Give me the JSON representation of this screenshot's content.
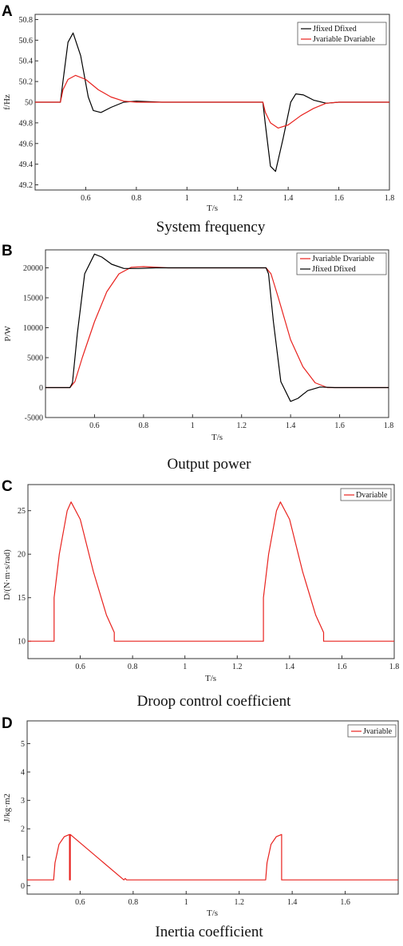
{
  "chart_data": [
    {
      "type": "line",
      "panel": "A",
      "caption": "System frequency",
      "xlabel": "T/s",
      "ylabel": "f/Hz",
      "xlim": [
        0.4,
        1.8
      ],
      "ylim": [
        49.15,
        50.85
      ],
      "xticks": [
        "0.6",
        "0.8",
        "1",
        "1.2",
        "1.4",
        "1.6",
        "1.8"
      ],
      "yticks": [
        "49.2",
        "49.4",
        "49.6",
        "49.8",
        "50",
        "50.2",
        "50.4",
        "50.6",
        "50.8"
      ],
      "legend_position": "top-right",
      "series": [
        {
          "name": "Jfixed Dfixed",
          "color": "#000000",
          "x": [
            0.4,
            0.5,
            0.51,
            0.53,
            0.55,
            0.58,
            0.61,
            0.63,
            0.66,
            0.7,
            0.75,
            0.8,
            0.9,
            1.3,
            1.31,
            1.33,
            1.35,
            1.38,
            1.41,
            1.43,
            1.46,
            1.5,
            1.55,
            1.6,
            1.8
          ],
          "y": [
            50,
            50,
            50.2,
            50.58,
            50.67,
            50.45,
            50.05,
            49.92,
            49.9,
            49.95,
            50.0,
            50.01,
            50.0,
            50,
            49.78,
            49.38,
            49.33,
            49.65,
            50.0,
            50.08,
            50.07,
            50.02,
            49.99,
            50.0,
            50.0
          ]
        },
        {
          "name": "Jvariable Dvariable",
          "color": "#e8221e",
          "x": [
            0.4,
            0.5,
            0.51,
            0.53,
            0.56,
            0.6,
            0.65,
            0.7,
            0.75,
            0.8,
            0.9,
            1.3,
            1.31,
            1.33,
            1.36,
            1.4,
            1.45,
            1.5,
            1.55,
            1.6,
            1.8
          ],
          "y": [
            50,
            50,
            50.12,
            50.22,
            50.26,
            50.22,
            50.12,
            50.05,
            50.01,
            50.0,
            50.0,
            50,
            49.9,
            49.8,
            49.75,
            49.78,
            49.87,
            49.94,
            49.99,
            50.0,
            50.0
          ]
        }
      ]
    },
    {
      "type": "line",
      "panel": "B",
      "caption": "Output power",
      "xlabel": "T/s",
      "ylabel": "P/W",
      "xlim": [
        0.4,
        1.8
      ],
      "ylim": [
        -5000,
        23000
      ],
      "xticks": [
        "0.6",
        "0.8",
        "1",
        "1.2",
        "1.4",
        "1.6",
        "1.8"
      ],
      "yticks": [
        "-5000",
        "0",
        "5000",
        "10000",
        "15000",
        "20000"
      ],
      "legend_position": "top-right",
      "series": [
        {
          "name": "Jvariable Dvariable",
          "color": "#e8221e",
          "x": [
            0.4,
            0.5,
            0.52,
            0.55,
            0.6,
            0.65,
            0.7,
            0.75,
            0.8,
            0.9,
            1.3,
            1.32,
            1.35,
            1.4,
            1.45,
            1.5,
            1.55,
            1.6,
            1.8
          ],
          "y": [
            0,
            0,
            1000,
            5000,
            11000,
            16000,
            19000,
            20100,
            20200,
            20000,
            20000,
            19000,
            15000,
            8000,
            3500,
            800,
            0,
            0,
            0
          ]
        },
        {
          "name": "Jfixed Dfixed",
          "color": "#000000",
          "x": [
            0.4,
            0.5,
            0.51,
            0.53,
            0.56,
            0.6,
            0.63,
            0.67,
            0.72,
            0.78,
            0.85,
            1.3,
            1.31,
            1.33,
            1.36,
            1.4,
            1.43,
            1.47,
            1.52,
            1.58,
            1.8
          ],
          "y": [
            0,
            0,
            800,
            9000,
            19000,
            22300,
            21800,
            20600,
            19900,
            19900,
            20000,
            20000,
            19000,
            11000,
            1000,
            -2300,
            -1800,
            -500,
            100,
            0,
            0
          ]
        }
      ]
    },
    {
      "type": "line",
      "panel": "C",
      "caption": "Droop control coefficient",
      "xlabel": "T/s",
      "ylabel": "D/(N·m·s/rad)",
      "xlim": [
        0.4,
        1.8
      ],
      "ylim": [
        8,
        28
      ],
      "xticks": [
        "0.6",
        "0.8",
        "1",
        "1.2",
        "1.4",
        "1.6",
        "1.8"
      ],
      "yticks": [
        "10",
        "15",
        "20",
        "25"
      ],
      "legend_position": "top-right",
      "series": [
        {
          "name": "Dvariable",
          "color": "#e8221e",
          "x": [
            0.4,
            0.5,
            0.5,
            0.52,
            0.55,
            0.565,
            0.6,
            0.65,
            0.7,
            0.73,
            0.73,
            1.3,
            1.3,
            1.32,
            1.35,
            1.365,
            1.4,
            1.45,
            1.5,
            1.53,
            1.53,
            1.8
          ],
          "y": [
            10,
            10,
            15,
            20,
            25,
            26,
            24,
            18,
            13,
            11,
            10,
            10,
            15,
            20,
            25,
            26,
            24,
            18,
            13,
            11,
            10,
            10
          ]
        }
      ]
    },
    {
      "type": "line",
      "panel": "D",
      "caption": "Inertia coefficient",
      "xlabel": "T/s",
      "ylabel": "J/kg·m2",
      "xlim": [
        0.4,
        1.8
      ],
      "ylim": [
        -0.3,
        5.8
      ],
      "xticks": [
        "0.6",
        "0.8",
        "1",
        "1.2",
        "1.4",
        "1.6"
      ],
      "yticks": [
        "0",
        "1",
        "2",
        "3",
        "4",
        "5"
      ],
      "legend_position": "top-right",
      "series": [
        {
          "name": "Jvariable",
          "color": "#e8221e",
          "x": [
            0.4,
            0.5,
            0.505,
            0.52,
            0.54,
            0.56,
            0.56,
            0.563,
            0.563,
            0.765,
            0.77,
            0.775,
            1.3,
            1.305,
            1.32,
            1.34,
            1.36,
            1.36,
            1.363,
            1.363,
            1.8
          ],
          "y": [
            0.2,
            0.2,
            0.8,
            1.45,
            1.72,
            1.8,
            0.2,
            0.2,
            1.8,
            0.2,
            0.25,
            0.2,
            0.2,
            0.8,
            1.45,
            1.72,
            1.8,
            0.2,
            0.2,
            0.2,
            0.2
          ]
        }
      ]
    }
  ]
}
